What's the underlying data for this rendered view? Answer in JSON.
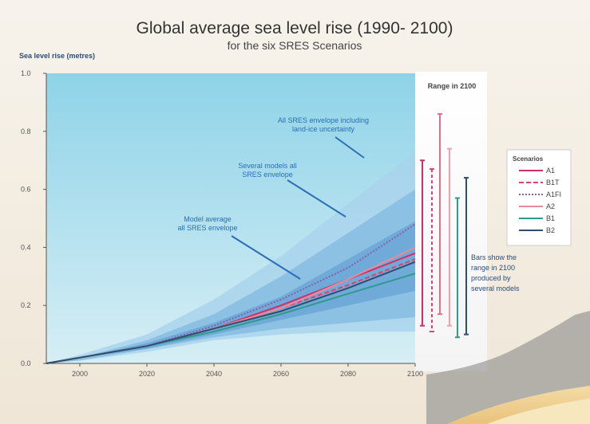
{
  "chart_data": {
    "type": "area",
    "title": "Global average sea level rise (1990- 2100)",
    "subtitle": "for the six SRES Scenarios",
    "ylabel": "Sea level rise (metres)",
    "xlabel": "",
    "xlim": [
      1990,
      2100
    ],
    "ylim": [
      0,
      1.0
    ],
    "x_ticks": [
      2000,
      2020,
      2040,
      2060,
      2080,
      2100
    ],
    "y_ticks": [
      0.0,
      0.2,
      0.4,
      0.6,
      0.8,
      1.0
    ],
    "y_tick_labels": [
      "0.0",
      "0.2",
      "0.4",
      "0.6",
      "0.8",
      "1.0"
    ],
    "grid": false,
    "legend_position": "right",
    "legend_title": "Scenarios",
    "bands": [
      {
        "name": "all_sres_envelope_land_ice",
        "color": "#a9d3ec",
        "x": [
          1990,
          2000,
          2020,
          2040,
          2060,
          2080,
          2100
        ],
        "upper": [
          0.0,
          0.03,
          0.1,
          0.22,
          0.37,
          0.55,
          0.73
        ],
        "lower": [
          0.0,
          0.01,
          0.04,
          0.08,
          0.1,
          0.11,
          0.11
        ]
      },
      {
        "name": "several_models_all_sres",
        "color": "#86bde2",
        "x": [
          1990,
          2000,
          2020,
          2040,
          2060,
          2080,
          2100
        ],
        "upper": [
          0.0,
          0.02,
          0.08,
          0.17,
          0.3,
          0.45,
          0.6
        ],
        "lower": [
          0.0,
          0.01,
          0.05,
          0.09,
          0.12,
          0.14,
          0.16
        ]
      },
      {
        "name": "model_average_all_sres",
        "color": "#6aa6d6",
        "x": [
          1990,
          2000,
          2020,
          2040,
          2060,
          2080,
          2100
        ],
        "upper": [
          0.0,
          0.02,
          0.07,
          0.14,
          0.23,
          0.36,
          0.49
        ],
        "lower": [
          0.0,
          0.02,
          0.05,
          0.1,
          0.15,
          0.2,
          0.25
        ]
      }
    ],
    "series": [
      {
        "name": "A1",
        "color": "#d0306a",
        "dash": "",
        "x": [
          1990,
          2000,
          2020,
          2040,
          2060,
          2080,
          2100
        ],
        "values": [
          0.0,
          0.02,
          0.06,
          0.12,
          0.2,
          0.29,
          0.38
        ]
      },
      {
        "name": "B1T",
        "color": "#e0406e",
        "dash": "6,3",
        "x": [
          1990,
          2000,
          2020,
          2040,
          2060,
          2080,
          2100
        ],
        "values": [
          0.0,
          0.02,
          0.06,
          0.12,
          0.19,
          0.27,
          0.36
        ]
      },
      {
        "name": "A1FI",
        "color": "#8a5fa8",
        "dash": "2,2",
        "x": [
          1990,
          2000,
          2020,
          2040,
          2060,
          2080,
          2100
        ],
        "values": [
          0.0,
          0.02,
          0.06,
          0.13,
          0.22,
          0.33,
          0.48
        ]
      },
      {
        "name": "A2",
        "color": "#e88c9c",
        "dash": "",
        "x": [
          1990,
          2000,
          2020,
          2040,
          2060,
          2080,
          2100
        ],
        "values": [
          0.0,
          0.02,
          0.06,
          0.12,
          0.19,
          0.29,
          0.4
        ]
      },
      {
        "name": "B1",
        "color": "#2f9a8e",
        "dash": "",
        "x": [
          1990,
          2000,
          2020,
          2040,
          2060,
          2080,
          2100
        ],
        "values": [
          0.0,
          0.02,
          0.06,
          0.11,
          0.17,
          0.24,
          0.31
        ]
      },
      {
        "name": "B2",
        "color": "#2f4f6f",
        "dash": "",
        "x": [
          1990,
          2000,
          2020,
          2040,
          2060,
          2080,
          2100
        ],
        "values": [
          0.0,
          0.02,
          0.06,
          0.12,
          0.18,
          0.26,
          0.35
        ]
      }
    ],
    "range_2100": {
      "title": "Range in 2100",
      "bars": [
        {
          "name": "A1",
          "color": "#d0306a",
          "dash": "",
          "low": 0.13,
          "high": 0.7
        },
        {
          "name": "B1T",
          "color": "#e0406e",
          "dash": "4,3",
          "low": 0.11,
          "high": 0.67
        },
        {
          "name": "A1FI",
          "color": "#e07090",
          "dash": "",
          "low": 0.17,
          "high": 0.86
        },
        {
          "name": "A2",
          "color": "#f0a0a8",
          "dash": "",
          "low": 0.13,
          "high": 0.74
        },
        {
          "name": "B1",
          "color": "#2f9a8e",
          "dash": "",
          "low": 0.09,
          "high": 0.57
        },
        {
          "name": "B2",
          "color": "#2f4f6f",
          "dash": "",
          "low": 0.1,
          "high": 0.64
        }
      ]
    },
    "annotations": [
      {
        "text_lines": [
          "All SRES envelope including",
          "land-ice uncertainty"
        ]
      },
      {
        "text_lines": [
          "Several models all",
          "SRES envelope"
        ]
      },
      {
        "text_lines": [
          "Model average",
          "all SRES envelope"
        ]
      },
      {
        "text_lines": [
          "Bars show the",
          "range in 2100",
          "produced by",
          "several models"
        ]
      }
    ]
  }
}
